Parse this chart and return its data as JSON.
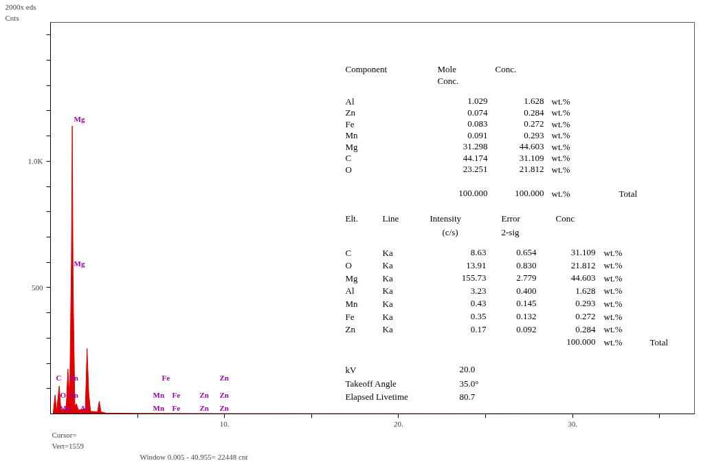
{
  "chart_data": {
    "type": "area",
    "title": "2000x eds",
    "ylabel": "Cnts",
    "x": [
      0,
      0.15,
      0.26,
      0.35,
      0.5,
      0.6,
      0.9,
      1.0,
      1.1,
      1.2,
      1.25,
      1.3,
      1.4,
      1.49,
      1.6,
      2.0,
      2.1,
      2.2,
      2.3,
      2.7,
      2.8,
      2.9,
      3.2,
      5,
      10,
      37
    ],
    "series": [
      {
        "color": "#e00000",
        "values": [
          0,
          0,
          75,
          10,
          110,
          15,
          20,
          177,
          60,
          600,
          1140,
          500,
          30,
          40,
          15,
          20,
          259,
          80,
          10,
          8,
          50,
          8,
          3,
          2,
          1,
          0
        ]
      }
    ],
    "xlim": [
      0,
      37
    ],
    "ylim": [
      0,
      1550
    ],
    "xticks": [
      {
        "value": 5,
        "label": null
      },
      {
        "value": 10,
        "label": "10."
      },
      {
        "value": 15,
        "label": null
      },
      {
        "value": 20,
        "label": "20."
      },
      {
        "value": 25,
        "label": null
      },
      {
        "value": 30,
        "label": "30."
      },
      {
        "value": 35,
        "label": null
      }
    ],
    "yticks": [
      {
        "value": 100,
        "label": null
      },
      {
        "value": 200,
        "label": null
      },
      {
        "value": 300,
        "label": null
      },
      {
        "value": 400,
        "label": null
      },
      500,
      {
        "value": 600,
        "label": null
      },
      {
        "value": 700,
        "label": null
      },
      {
        "value": 800,
        "label": null
      },
      {
        "value": 900,
        "label": null
      },
      {
        "value": 1000,
        "label": "1.0K"
      },
      {
        "value": 1100,
        "label": null
      },
      {
        "value": 1200,
        "label": null
      },
      {
        "value": 1300,
        "label": null
      },
      {
        "value": 1400,
        "label": null
      },
      {
        "value": 1500,
        "label": null
      }
    ],
    "grid": false,
    "annotations": [
      "Component\tMole\tConc.",
      "Conc.",
      "Al\t1.029\t1.628\twt.%",
      "Zn\t0.074\t0.284\twt.%",
      "Fe\t0.083\t0.272\twt.%",
      "Mn\t0.091\t0.293\twt.%",
      "Mg\t31.298\t44.603\twt.%",
      "C\t44.174\t31.109\twt.%",
      "O\t23.251\t21.812\twt.%",
      "100.000\t100.000\twt.%\tTotal",
      "Elt.\tLine\tIntensity\tError\tConc",
      "(c/s)\t2-sig",
      "C\tKa\t8.63\t0.654\t31.109\twt.%",
      "O\tKa\t13.91\t0.830\t21.812\twt.%",
      "Mg\tKa\t155.73\t2.779\t44.603\twt.%",
      "Al\tKa\t3.23\t0.400\t1.628\twt.%",
      "Mn\tKa\t0.43\t0.145\t0.293\twt.%",
      "Fe\tKa\t0.35\t0.132\t0.272\twt.%",
      "Zn\tKa\t0.17\t0.092\t0.284\twt.%",
      "100.000\twt.%\tTotal",
      "kV\t20.0",
      "Takeoff Angle\t35.0°",
      "Elapsed Livetime\t80.7",
      "Cursor=",
      "Vert=1559\tWindow 0.005 - 40.955=   22448 cnt",
      "Mg",
      "Mg",
      "C\tZn\t\tFe\t\tZn",
      "O\tZn\tMn\tFe\tZn\tZn",
      "Mn\tAl\tMn\tFe\tZn\tZn"
    ]
  }
}
